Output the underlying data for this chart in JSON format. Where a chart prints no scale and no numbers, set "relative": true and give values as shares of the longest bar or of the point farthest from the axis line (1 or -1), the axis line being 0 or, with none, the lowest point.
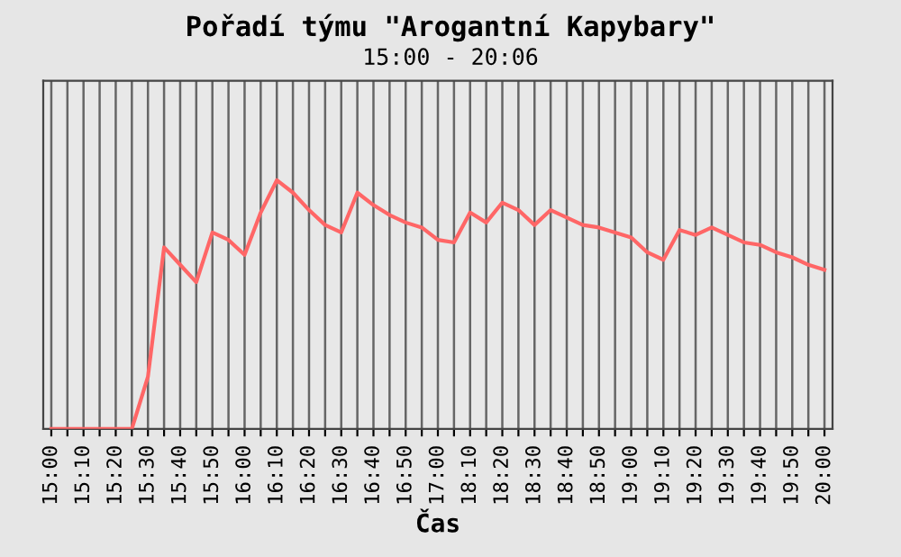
{
  "chart_data": {
    "type": "line",
    "title": "Pořadí týmu \"Arogantní Kapybary\"",
    "subtitle": "15:00 - 20:06",
    "xlabel": "Čas",
    "relative": true,
    "grid": "x",
    "marker": "none",
    "line_style": "solid",
    "categories": [
      "15:00",
      null,
      "15:10",
      null,
      "15:20",
      null,
      "15:30",
      null,
      "15:40",
      null,
      "15:50",
      null,
      "16:00",
      null,
      "16:10",
      null,
      "16:20",
      null,
      "16:30",
      null,
      "16:40",
      null,
      "16:50",
      null,
      "17:00",
      null,
      "18:10",
      null,
      "18:20",
      null,
      "18:30",
      null,
      "18:40",
      null,
      "18:50",
      null,
      "19:00",
      null,
      "19:10",
      null,
      "19:20",
      null,
      "19:30",
      null,
      "19:40",
      null,
      "19:50",
      null,
      "20:00"
    ],
    "series": [
      {
        "color": "#ff6666",
        "values": [
          0,
          0,
          0,
          0,
          0,
          0,
          0.21,
          0.73,
          0.66,
          0.59,
          0.79,
          0.76,
          0.7,
          0.87,
          1,
          0.95,
          0.88,
          0.82,
          0.79,
          0.95,
          0.9,
          0.86,
          0.83,
          0.81,
          0.76,
          0.75,
          0.87,
          0.83,
          0.91,
          0.88,
          0.82,
          0.88,
          0.85,
          0.82,
          0.81,
          0.79,
          0.77,
          0.71,
          0.68,
          0.8,
          0.78,
          0.81,
          0.78,
          0.75,
          0.74,
          0.71,
          0.69,
          0.66,
          0.64
        ]
      }
    ]
  }
}
